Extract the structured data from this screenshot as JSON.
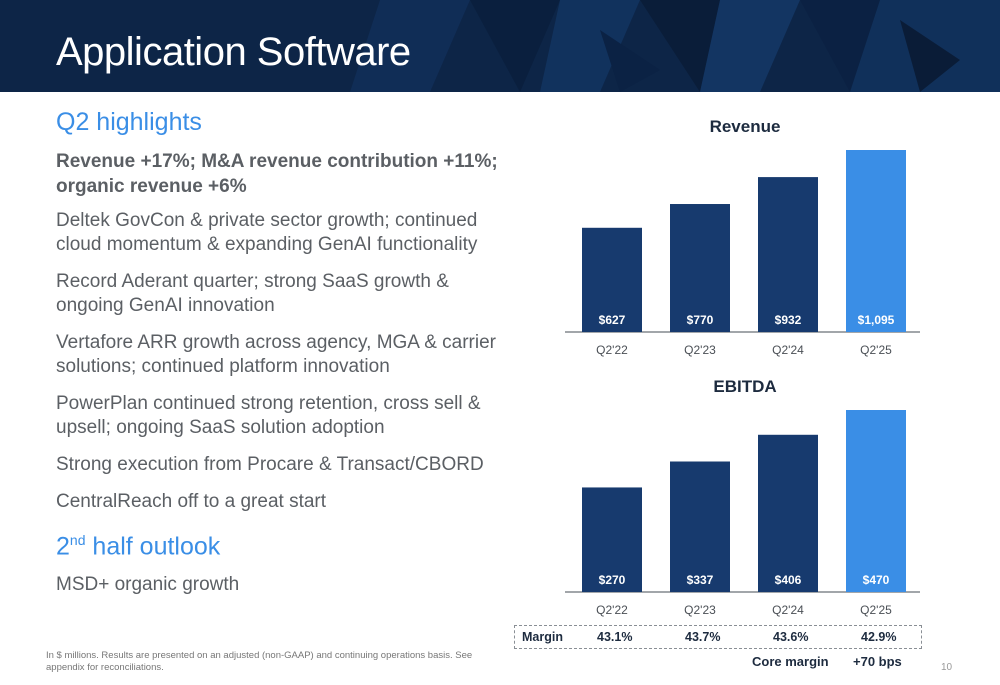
{
  "header": {
    "title": "Application Software"
  },
  "left": {
    "highlights_heading": "Q2 highlights",
    "bold_line": "Revenue +17%; M&A revenue contribution +11%; organic revenue +6%",
    "bullets": [
      "Deltek GovCon & private sector growth; continued cloud momentum & expanding GenAI functionality",
      "Record Aderant quarter; strong SaaS growth & ongoing GenAI innovation",
      "Vertafore ARR growth across agency, MGA & carrier solutions; continued platform innovation",
      "PowerPlan continued strong retention, cross sell & upsell; ongoing SaaS solution adoption",
      "Strong execution from Procare & Transact/CBORD",
      "CentralReach off to a great start"
    ],
    "outlook_heading_num": "2",
    "outlook_heading_sup": "nd",
    "outlook_heading_rest": " half outlook",
    "outlook_bullet": "MSD+ organic growth"
  },
  "chart_data": [
    {
      "type": "bar",
      "title": "Revenue",
      "categories": [
        "Q2'22",
        "Q2'23",
        "Q2'24",
        "Q2'25"
      ],
      "values": [
        627,
        770,
        932,
        1095
      ],
      "value_labels": [
        "$627",
        "$770",
        "$932",
        "$1,095"
      ],
      "colors": [
        "#173a6e",
        "#173a6e",
        "#173a6e",
        "#3a8ee6"
      ]
    },
    {
      "type": "bar",
      "title": "EBITDA",
      "categories": [
        "Q2'22",
        "Q2'23",
        "Q2'24",
        "Q2'25"
      ],
      "values": [
        270,
        337,
        406,
        470
      ],
      "value_labels": [
        "$270",
        "$337",
        "$406",
        "$470"
      ],
      "colors": [
        "#173a6e",
        "#173a6e",
        "#173a6e",
        "#3a8ee6"
      ]
    }
  ],
  "margin_row": {
    "label": "Margin",
    "values": [
      "43.1%",
      "43.7%",
      "43.6%",
      "42.9%"
    ]
  },
  "core_margin": {
    "label": "Core margin",
    "value": "+70 bps"
  },
  "footnote": "In $ millions. Results are presented on an adjusted (non-GAAP) and continuing operations basis. See appendix for reconciliations.",
  "page_number": "10"
}
